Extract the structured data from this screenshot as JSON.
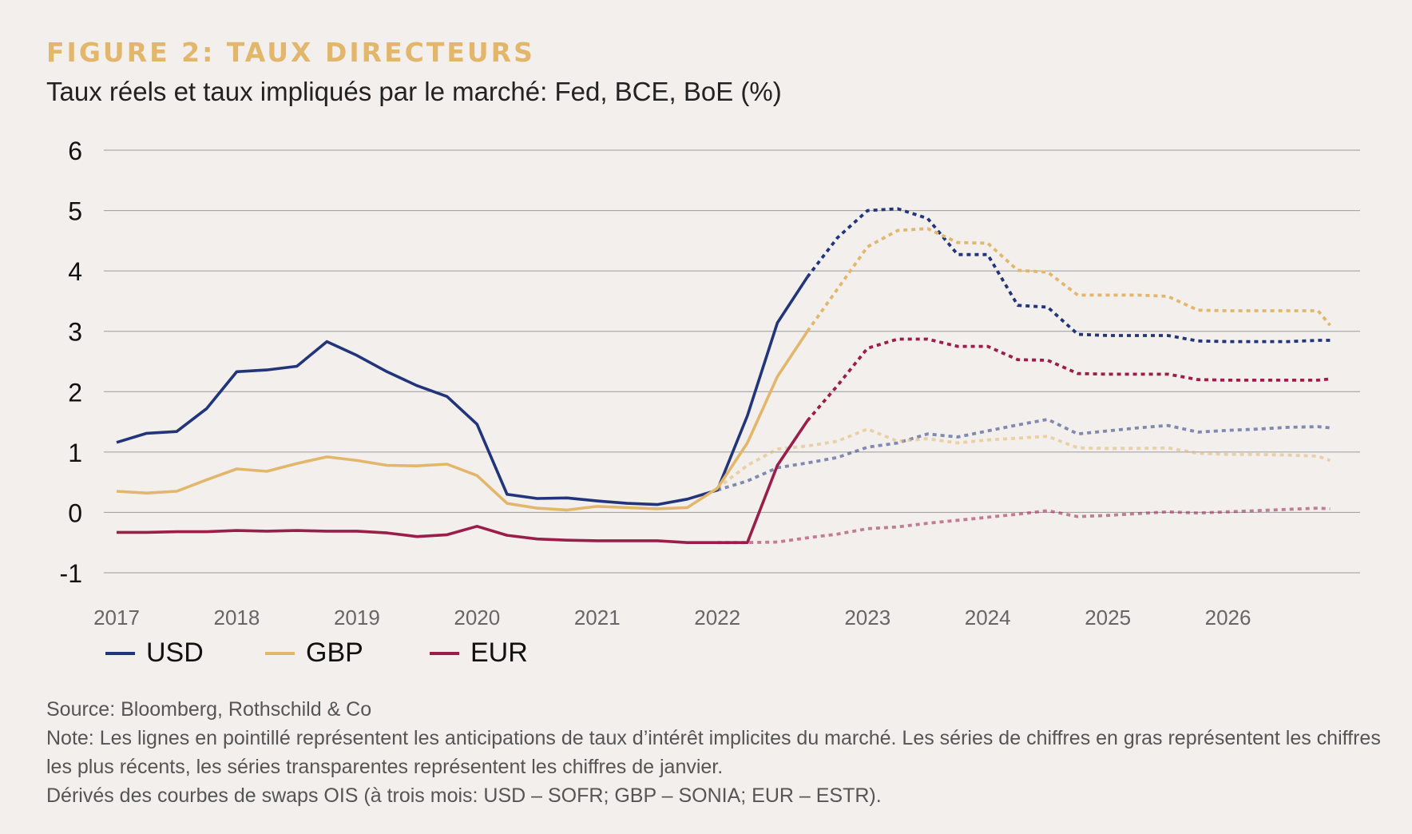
{
  "header": {
    "title": "FIGURE 2: TAUX DIRECTEURS",
    "subtitle": "Taux réels et taux impliqués par le marché: Fed, BCE, BoE (%)"
  },
  "legend": [
    {
      "label": "USD",
      "color": "#22357a"
    },
    {
      "label": "GBP",
      "color": "#e2b76c"
    },
    {
      "label": "EUR",
      "color": "#9a1d4a"
    }
  ],
  "footer": {
    "source": "Source: Bloomberg, Rothschild & Co",
    "note": "Note: Les lignes en pointillé représentent les anticipations de taux d’intérêt implicites du marché. Les séries de chiffres en gras représentent les chiffres les plus récents, les séries transparentes représentent les chiffres de janvier.",
    "derivation": "Dérivés des courbes de swaps OIS (à trois mois: USD – SOFR; GBP – SONIA; EUR – ESTR)."
  },
  "chart_data": {
    "type": "line",
    "ylim": [
      -1,
      6
    ],
    "yticks": [
      6,
      5,
      4,
      3,
      2,
      1,
      0,
      -1
    ],
    "xlim": [
      2017,
      2027.25
    ],
    "xticks": [
      {
        "label": "2017",
        "value": 2017.0
      },
      {
        "label": "2018",
        "value": 2018.0
      },
      {
        "label": "2019",
        "value": 2019.0
      },
      {
        "label": "2020",
        "value": 2020.0
      },
      {
        "label": "2021",
        "value": 2021.0
      },
      {
        "label": "2022",
        "value": 2022.0
      },
      {
        "label": "2023",
        "value": 2023.25
      },
      {
        "label": "2024",
        "value": 2024.25
      },
      {
        "label": "2025",
        "value": 2025.25
      },
      {
        "label": "2026",
        "value": 2026.25
      }
    ],
    "grid": true,
    "legend_position": "bottom-left",
    "series": [
      {
        "name": "USD",
        "color": "#22357a",
        "style": "solid",
        "opacity": 1,
        "x": [
          2017.0,
          2017.25,
          2017.5,
          2017.75,
          2018.0,
          2018.25,
          2018.5,
          2018.75,
          2019.0,
          2019.25,
          2019.5,
          2019.75,
          2020.0,
          2020.25,
          2020.5,
          2020.75,
          2021.0,
          2021.25,
          2021.5,
          2021.75,
          2022.0,
          2022.25,
          2022.5,
          2022.75
        ],
        "y": [
          1.16,
          1.31,
          1.34,
          1.72,
          2.33,
          2.36,
          2.42,
          2.83,
          2.6,
          2.33,
          2.1,
          1.92,
          1.46,
          0.3,
          0.23,
          0.24,
          0.19,
          0.15,
          0.13,
          0.22,
          0.37,
          1.6,
          3.14,
          3.9
        ]
      },
      {
        "name": "",
        "color": "#22357a",
        "style": "dotted",
        "opacity": 1,
        "x": [
          2022.75,
          2023.0,
          2023.25,
          2023.5,
          2023.75,
          2024.0,
          2024.25,
          2024.5,
          2024.75,
          2025.0,
          2025.25,
          2025.5,
          2025.75,
          2026.0,
          2026.25,
          2026.5,
          2026.75,
          2027.0,
          2027.1
        ],
        "y": [
          3.9,
          4.55,
          5.0,
          5.03,
          4.87,
          4.27,
          4.27,
          3.43,
          3.4,
          2.95,
          2.93,
          2.93,
          2.93,
          2.84,
          2.83,
          2.83,
          2.83,
          2.85,
          2.85
        ]
      },
      {
        "name": "",
        "color": "#22357a",
        "style": "dotted",
        "opacity": 0.55,
        "x": [
          2022.0,
          2022.25,
          2022.5,
          2022.75,
          2023.0,
          2023.25,
          2023.5,
          2023.75,
          2024.0,
          2024.25,
          2024.5,
          2024.75,
          2025.0,
          2025.25,
          2025.5,
          2025.75,
          2026.0,
          2026.25,
          2026.5,
          2026.75,
          2027.0,
          2027.1
        ],
        "y": [
          0.37,
          0.52,
          0.74,
          0.82,
          0.91,
          1.08,
          1.15,
          1.3,
          1.25,
          1.35,
          1.45,
          1.54,
          1.3,
          1.35,
          1.4,
          1.44,
          1.33,
          1.36,
          1.38,
          1.41,
          1.42,
          1.4
        ]
      },
      {
        "name": "GBP",
        "color": "#e2b76c",
        "style": "solid",
        "opacity": 1,
        "x": [
          2017.0,
          2017.25,
          2017.5,
          2017.75,
          2018.0,
          2018.25,
          2018.5,
          2018.75,
          2019.0,
          2019.25,
          2019.5,
          2019.75,
          2020.0,
          2020.25,
          2020.5,
          2020.75,
          2021.0,
          2021.25,
          2021.5,
          2021.75,
          2022.0,
          2022.25,
          2022.5,
          2022.75
        ],
        "y": [
          0.35,
          0.32,
          0.35,
          0.54,
          0.72,
          0.68,
          0.81,
          0.92,
          0.86,
          0.78,
          0.77,
          0.8,
          0.61,
          0.15,
          0.07,
          0.04,
          0.1,
          0.08,
          0.06,
          0.08,
          0.4,
          1.15,
          2.25,
          3.0
        ]
      },
      {
        "name": "",
        "color": "#e2b76c",
        "style": "dotted",
        "opacity": 1,
        "x": [
          2022.75,
          2023.0,
          2023.25,
          2023.5,
          2023.75,
          2024.0,
          2024.25,
          2024.5,
          2024.75,
          2025.0,
          2025.25,
          2025.5,
          2025.75,
          2026.0,
          2026.25,
          2026.5,
          2026.75,
          2027.0,
          2027.1
        ],
        "y": [
          3.0,
          3.7,
          4.4,
          4.67,
          4.7,
          4.47,
          4.46,
          4.01,
          3.98,
          3.6,
          3.6,
          3.6,
          3.58,
          3.35,
          3.34,
          3.34,
          3.34,
          3.34,
          3.1
        ]
      },
      {
        "name": "",
        "color": "#e2b76c",
        "style": "dotted",
        "opacity": 0.55,
        "x": [
          2022.0,
          2022.25,
          2022.5,
          2022.75,
          2023.0,
          2023.25,
          2023.5,
          2023.75,
          2024.0,
          2024.25,
          2024.5,
          2024.75,
          2025.0,
          2025.25,
          2025.5,
          2025.75,
          2026.0,
          2026.25,
          2026.5,
          2026.75,
          2027.0,
          2027.1
        ],
        "y": [
          0.4,
          0.78,
          1.05,
          1.1,
          1.18,
          1.38,
          1.18,
          1.22,
          1.15,
          1.2,
          1.23,
          1.26,
          1.07,
          1.06,
          1.06,
          1.07,
          0.98,
          0.96,
          0.96,
          0.95,
          0.93,
          0.86
        ]
      },
      {
        "name": "EUR",
        "color": "#9a1d4a",
        "style": "solid",
        "opacity": 1,
        "x": [
          2017.0,
          2017.25,
          2017.5,
          2017.75,
          2018.0,
          2018.25,
          2018.5,
          2018.75,
          2019.0,
          2019.25,
          2019.5,
          2019.75,
          2020.0,
          2020.25,
          2020.5,
          2020.75,
          2021.0,
          2021.25,
          2021.5,
          2021.75,
          2022.0,
          2022.25,
          2022.5,
          2022.75
        ],
        "y": [
          -0.33,
          -0.33,
          -0.32,
          -0.32,
          -0.3,
          -0.31,
          -0.3,
          -0.31,
          -0.31,
          -0.34,
          -0.4,
          -0.37,
          -0.23,
          -0.38,
          -0.44,
          -0.46,
          -0.47,
          -0.47,
          -0.47,
          -0.5,
          -0.5,
          -0.5,
          0.78,
          1.52
        ]
      },
      {
        "name": "",
        "color": "#9a1d4a",
        "style": "dotted",
        "opacity": 1,
        "x": [
          2022.75,
          2023.0,
          2023.25,
          2023.5,
          2023.75,
          2024.0,
          2024.25,
          2024.5,
          2024.75,
          2025.0,
          2025.25,
          2025.5,
          2025.75,
          2026.0,
          2026.25,
          2026.5,
          2026.75,
          2027.0,
          2027.1
        ],
        "y": [
          1.52,
          2.1,
          2.72,
          2.87,
          2.87,
          2.75,
          2.75,
          2.53,
          2.52,
          2.3,
          2.29,
          2.29,
          2.29,
          2.2,
          2.19,
          2.19,
          2.19,
          2.19,
          2.21
        ]
      },
      {
        "name": "",
        "color": "#9a1d4a",
        "style": "dotted",
        "opacity": 0.55,
        "x": [
          2022.0,
          2022.25,
          2022.5,
          2022.75,
          2023.0,
          2023.25,
          2023.5,
          2023.75,
          2024.0,
          2024.25,
          2024.5,
          2024.75,
          2025.0,
          2025.25,
          2025.5,
          2025.75,
          2026.0,
          2026.25,
          2026.5,
          2026.75,
          2027.0,
          2027.1
        ],
        "y": [
          -0.5,
          -0.5,
          -0.49,
          -0.42,
          -0.36,
          -0.27,
          -0.24,
          -0.18,
          -0.13,
          -0.08,
          -0.03,
          0.03,
          -0.07,
          -0.05,
          -0.02,
          0.01,
          -0.01,
          0.01,
          0.03,
          0.05,
          0.07,
          0.06
        ]
      }
    ]
  }
}
